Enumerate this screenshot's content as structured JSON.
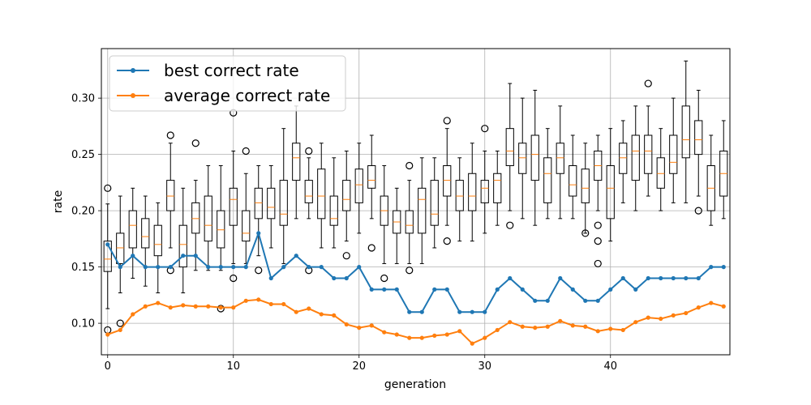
{
  "chart_data": {
    "type": "box+line",
    "xlabel": "generation",
    "ylabel": "rate",
    "xlim": [
      -0.5,
      49.5
    ],
    "ylim": [
      0.072,
      0.344
    ],
    "xticks": [
      0,
      10,
      20,
      30,
      40
    ],
    "yticks": [
      0.1,
      0.15,
      0.2,
      0.25,
      0.3
    ],
    "ytick_labels": [
      "0.10",
      "0.15",
      "0.20",
      "0.25",
      "0.30"
    ],
    "grid": true,
    "legend": "upper left",
    "series": [
      {
        "name": "best correct rate",
        "color": "#1f77b4",
        "values": [
          0.17,
          0.15,
          0.16,
          0.15,
          0.15,
          0.15,
          0.16,
          0.16,
          0.15,
          0.15,
          0.15,
          0.15,
          0.18,
          0.14,
          0.15,
          0.16,
          0.15,
          0.15,
          0.14,
          0.14,
          0.15,
          0.13,
          0.13,
          0.13,
          0.11,
          0.11,
          0.13,
          0.13,
          0.11,
          0.11,
          0.11,
          0.13,
          0.14,
          0.13,
          0.12,
          0.12,
          0.14,
          0.13,
          0.12,
          0.12,
          0.13,
          0.14,
          0.13,
          0.14,
          0.14,
          0.14,
          0.14,
          0.14,
          0.15,
          0.15
        ]
      },
      {
        "name": "average correct rate",
        "color": "#ff7f0e",
        "values": [
          0.09,
          0.094,
          0.108,
          0.115,
          0.118,
          0.114,
          0.116,
          0.115,
          0.115,
          0.114,
          0.114,
          0.12,
          0.121,
          0.117,
          0.117,
          0.11,
          0.113,
          0.108,
          0.107,
          0.099,
          0.096,
          0.098,
          0.092,
          0.09,
          0.087,
          0.087,
          0.089,
          0.09,
          0.093,
          0.082,
          0.087,
          0.094,
          0.101,
          0.097,
          0.096,
          0.097,
          0.102,
          0.098,
          0.097,
          0.093,
          0.095,
          0.094,
          0.101,
          0.105,
          0.104,
          0.107,
          0.109,
          0.114,
          0.118,
          0.115
        ]
      }
    ],
    "boxes": [
      {
        "x": 0,
        "wl": 0.113,
        "q1": 0.146,
        "med": 0.157,
        "q3": 0.173,
        "wh": 0.206,
        "fliers": [
          0.22,
          0.094
        ]
      },
      {
        "x": 1,
        "wl": 0.127,
        "q1": 0.153,
        "med": 0.167,
        "q3": 0.18,
        "wh": 0.213,
        "fliers": [
          0.1
        ]
      },
      {
        "x": 2,
        "wl": 0.14,
        "q1": 0.167,
        "med": 0.187,
        "q3": 0.2,
        "wh": 0.22,
        "fliers": []
      },
      {
        "x": 3,
        "wl": 0.133,
        "q1": 0.167,
        "med": 0.177,
        "q3": 0.193,
        "wh": 0.213,
        "fliers": []
      },
      {
        "x": 4,
        "wl": 0.127,
        "q1": 0.16,
        "med": 0.17,
        "q3": 0.187,
        "wh": 0.207,
        "fliers": []
      },
      {
        "x": 5,
        "wl": 0.167,
        "q1": 0.2,
        "med": 0.213,
        "q3": 0.227,
        "wh": 0.26,
        "fliers": [
          0.267,
          0.147
        ]
      },
      {
        "x": 6,
        "wl": 0.127,
        "q1": 0.15,
        "med": 0.17,
        "q3": 0.187,
        "wh": 0.22,
        "fliers": []
      },
      {
        "x": 7,
        "wl": 0.147,
        "q1": 0.18,
        "med": 0.193,
        "q3": 0.207,
        "wh": 0.227,
        "fliers": [
          0.26
        ]
      },
      {
        "x": 8,
        "wl": 0.147,
        "q1": 0.173,
        "med": 0.187,
        "q3": 0.213,
        "wh": 0.24,
        "fliers": []
      },
      {
        "x": 9,
        "wl": 0.147,
        "q1": 0.167,
        "med": 0.183,
        "q3": 0.2,
        "wh": 0.24,
        "fliers": [
          0.113
        ]
      },
      {
        "x": 10,
        "wl": 0.153,
        "q1": 0.187,
        "med": 0.21,
        "q3": 0.22,
        "wh": 0.253,
        "fliers": [
          0.287,
          0.14
        ]
      },
      {
        "x": 11,
        "wl": 0.153,
        "q1": 0.173,
        "med": 0.18,
        "q3": 0.2,
        "wh": 0.233,
        "fliers": [
          0.253
        ]
      },
      {
        "x": 12,
        "wl": 0.16,
        "q1": 0.193,
        "med": 0.207,
        "q3": 0.22,
        "wh": 0.24,
        "fliers": [
          0.147
        ]
      },
      {
        "x": 13,
        "wl": 0.167,
        "q1": 0.193,
        "med": 0.203,
        "q3": 0.22,
        "wh": 0.24,
        "fliers": []
      },
      {
        "x": 14,
        "wl": 0.153,
        "q1": 0.187,
        "med": 0.197,
        "q3": 0.227,
        "wh": 0.273,
        "fliers": []
      },
      {
        "x": 15,
        "wl": 0.193,
        "q1": 0.227,
        "med": 0.247,
        "q3": 0.26,
        "wh": 0.293,
        "fliers": []
      },
      {
        "x": 16,
        "wl": 0.193,
        "q1": 0.207,
        "med": 0.213,
        "q3": 0.227,
        "wh": 0.247,
        "fliers": [
          0.253,
          0.147
        ]
      },
      {
        "x": 17,
        "wl": 0.167,
        "q1": 0.193,
        "med": 0.213,
        "q3": 0.237,
        "wh": 0.26,
        "fliers": []
      },
      {
        "x": 18,
        "wl": 0.167,
        "q1": 0.187,
        "med": 0.193,
        "q3": 0.213,
        "wh": 0.247,
        "fliers": []
      },
      {
        "x": 19,
        "wl": 0.173,
        "q1": 0.2,
        "med": 0.21,
        "q3": 0.227,
        "wh": 0.253,
        "fliers": [
          0.16
        ]
      },
      {
        "x": 20,
        "wl": 0.18,
        "q1": 0.207,
        "med": 0.223,
        "q3": 0.237,
        "wh": 0.26,
        "fliers": []
      },
      {
        "x": 21,
        "wl": 0.193,
        "q1": 0.22,
        "med": 0.227,
        "q3": 0.24,
        "wh": 0.267,
        "fliers": [
          0.167
        ]
      },
      {
        "x": 22,
        "wl": 0.153,
        "q1": 0.187,
        "med": 0.2,
        "q3": 0.213,
        "wh": 0.24,
        "fliers": [
          0.14
        ]
      },
      {
        "x": 23,
        "wl": 0.153,
        "q1": 0.18,
        "med": 0.19,
        "q3": 0.2,
        "wh": 0.22,
        "fliers": []
      },
      {
        "x": 24,
        "wl": 0.153,
        "q1": 0.18,
        "med": 0.187,
        "q3": 0.2,
        "wh": 0.227,
        "fliers": [
          0.24,
          0.147
        ]
      },
      {
        "x": 25,
        "wl": 0.153,
        "q1": 0.18,
        "med": 0.21,
        "q3": 0.22,
        "wh": 0.247,
        "fliers": []
      },
      {
        "x": 26,
        "wl": 0.167,
        "q1": 0.187,
        "med": 0.197,
        "q3": 0.227,
        "wh": 0.247,
        "fliers": []
      },
      {
        "x": 27,
        "wl": 0.187,
        "q1": 0.213,
        "med": 0.227,
        "q3": 0.24,
        "wh": 0.273,
        "fliers": [
          0.28,
          0.173
        ]
      },
      {
        "x": 28,
        "wl": 0.173,
        "q1": 0.2,
        "med": 0.213,
        "q3": 0.227,
        "wh": 0.247,
        "fliers": []
      },
      {
        "x": 29,
        "wl": 0.173,
        "q1": 0.2,
        "med": 0.213,
        "q3": 0.233,
        "wh": 0.26,
        "fliers": []
      },
      {
        "x": 30,
        "wl": 0.18,
        "q1": 0.207,
        "med": 0.22,
        "q3": 0.227,
        "wh": 0.253,
        "fliers": [
          0.273
        ]
      },
      {
        "x": 31,
        "wl": 0.187,
        "q1": 0.207,
        "med": 0.227,
        "q3": 0.233,
        "wh": 0.253,
        "fliers": []
      },
      {
        "x": 32,
        "wl": 0.2,
        "q1": 0.24,
        "med": 0.253,
        "q3": 0.273,
        "wh": 0.313,
        "fliers": [
          0.187
        ]
      },
      {
        "x": 33,
        "wl": 0.193,
        "q1": 0.233,
        "med": 0.247,
        "q3": 0.26,
        "wh": 0.3,
        "fliers": []
      },
      {
        "x": 34,
        "wl": 0.187,
        "q1": 0.227,
        "med": 0.25,
        "q3": 0.267,
        "wh": 0.307,
        "fliers": []
      },
      {
        "x": 35,
        "wl": 0.193,
        "q1": 0.207,
        "med": 0.233,
        "q3": 0.247,
        "wh": 0.273,
        "fliers": []
      },
      {
        "x": 36,
        "wl": 0.193,
        "q1": 0.233,
        "med": 0.247,
        "q3": 0.26,
        "wh": 0.293,
        "fliers": []
      },
      {
        "x": 37,
        "wl": 0.193,
        "q1": 0.213,
        "med": 0.223,
        "q3": 0.24,
        "wh": 0.267,
        "fliers": []
      },
      {
        "x": 38,
        "wl": 0.18,
        "q1": 0.207,
        "med": 0.22,
        "q3": 0.237,
        "wh": 0.26,
        "fliers": [
          0.18
        ]
      },
      {
        "x": 39,
        "wl": 0.2,
        "q1": 0.227,
        "med": 0.24,
        "q3": 0.253,
        "wh": 0.267,
        "fliers": [
          0.187,
          0.173,
          0.153
        ]
      },
      {
        "x": 40,
        "wl": 0.173,
        "q1": 0.193,
        "med": 0.22,
        "q3": 0.24,
        "wh": 0.273,
        "fliers": []
      },
      {
        "x": 41,
        "wl": 0.207,
        "q1": 0.233,
        "med": 0.247,
        "q3": 0.26,
        "wh": 0.28,
        "fliers": []
      },
      {
        "x": 42,
        "wl": 0.2,
        "q1": 0.227,
        "med": 0.253,
        "q3": 0.267,
        "wh": 0.293,
        "fliers": []
      },
      {
        "x": 43,
        "wl": 0.213,
        "q1": 0.233,
        "med": 0.253,
        "q3": 0.267,
        "wh": 0.293,
        "fliers": [
          0.313
        ]
      },
      {
        "x": 44,
        "wl": 0.2,
        "q1": 0.22,
        "med": 0.233,
        "q3": 0.247,
        "wh": 0.273,
        "fliers": []
      },
      {
        "x": 45,
        "wl": 0.207,
        "q1": 0.233,
        "med": 0.243,
        "q3": 0.267,
        "wh": 0.3,
        "fliers": []
      },
      {
        "x": 46,
        "wl": 0.207,
        "q1": 0.247,
        "med": 0.263,
        "q3": 0.293,
        "wh": 0.333,
        "fliers": []
      },
      {
        "x": 47,
        "wl": 0.213,
        "q1": 0.25,
        "med": 0.263,
        "q3": 0.28,
        "wh": 0.307,
        "fliers": [
          0.2
        ]
      },
      {
        "x": 48,
        "wl": 0.187,
        "q1": 0.2,
        "med": 0.22,
        "q3": 0.24,
        "wh": 0.267,
        "fliers": []
      },
      {
        "x": 49,
        "wl": 0.193,
        "q1": 0.213,
        "med": 0.233,
        "q3": 0.253,
        "wh": 0.28,
        "fliers": []
      }
    ]
  }
}
